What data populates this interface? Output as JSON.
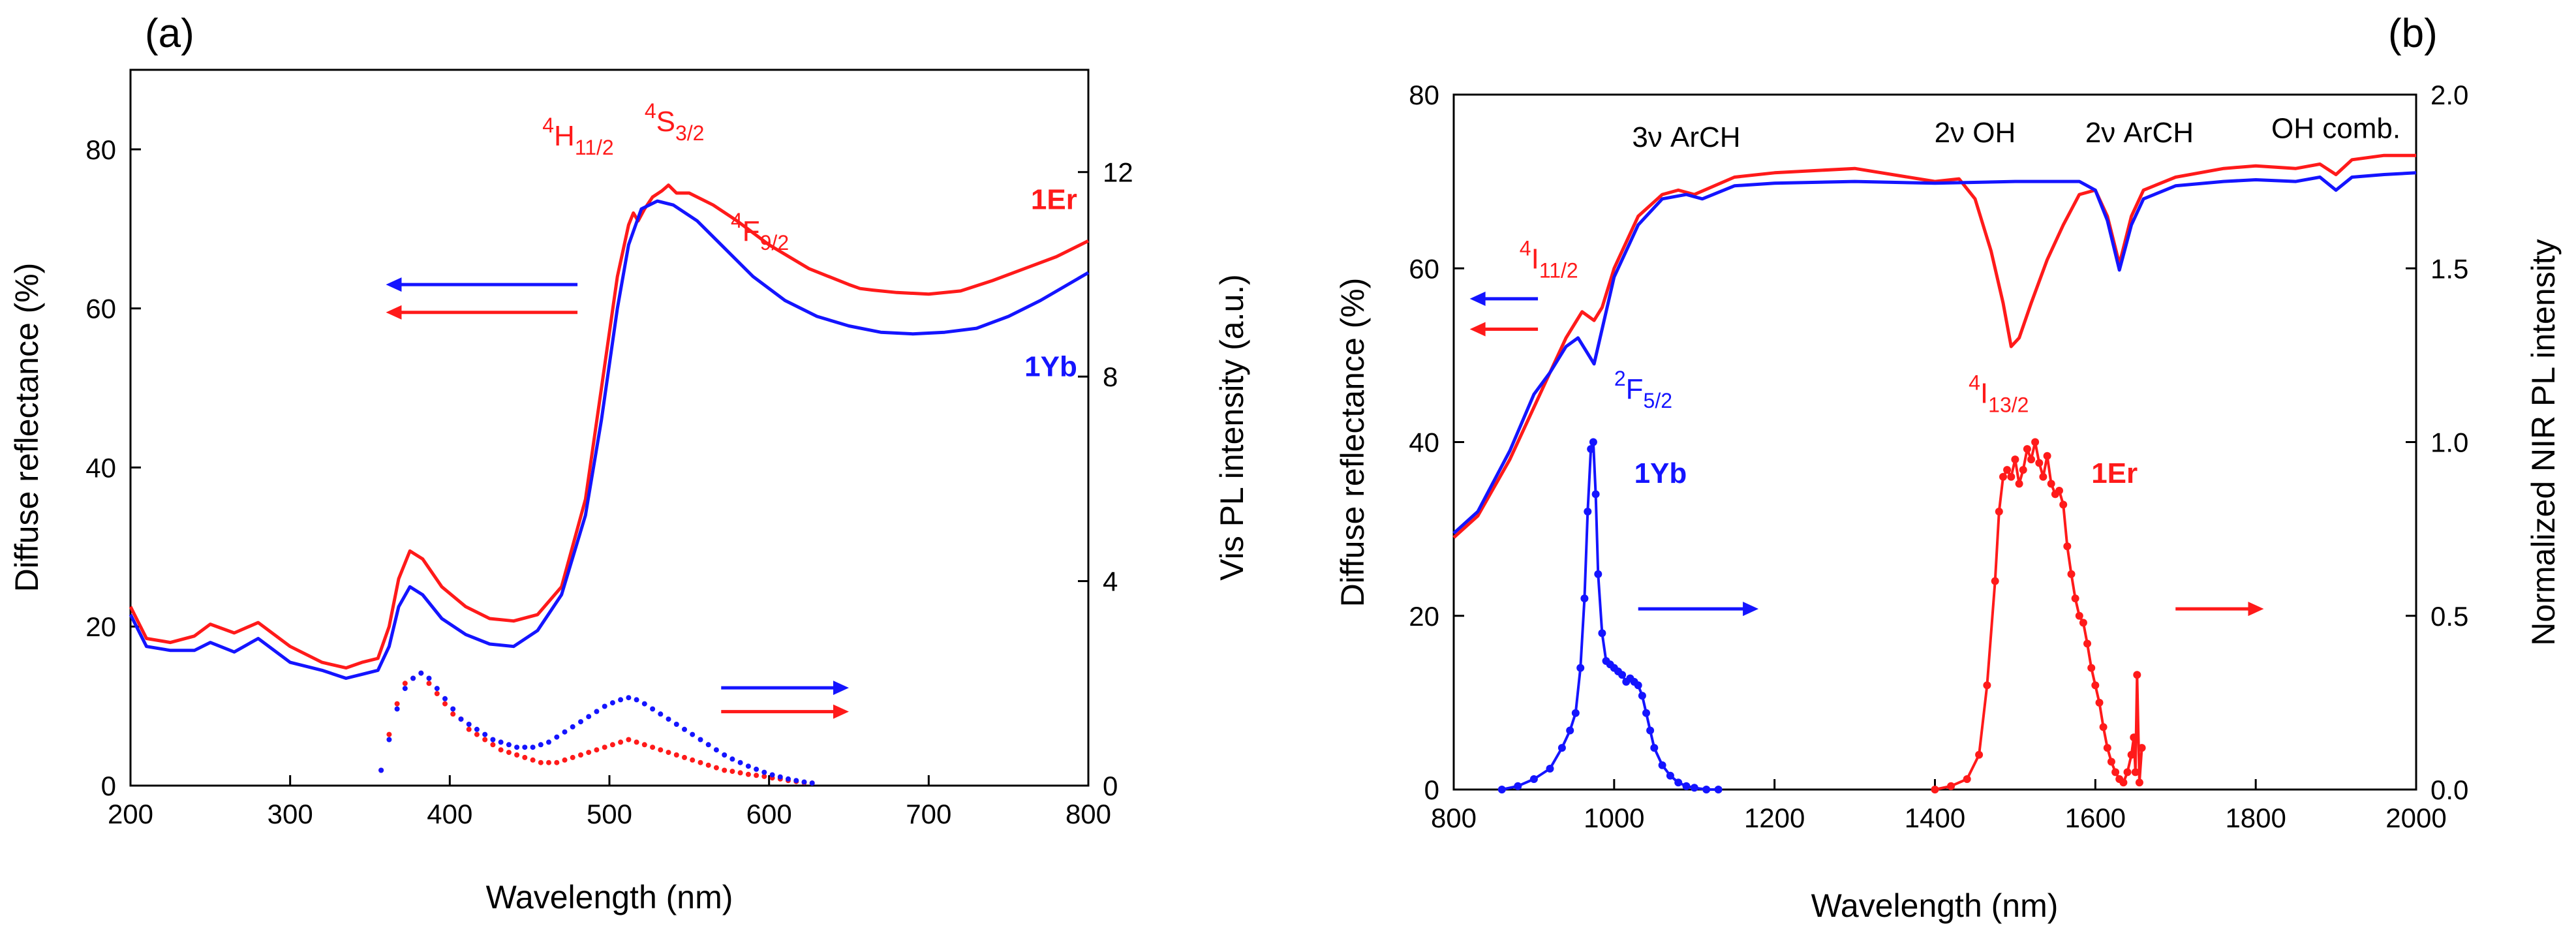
{
  "colors": {
    "red": "#ff1a1a",
    "blue": "#1414ff",
    "black": "#000000"
  },
  "chart_data": [
    {
      "type": "line",
      "panel_label": "(a)",
      "xlabel": "Wavelength (nm)",
      "ylabel": "Diffuse reflectance (%)",
      "y2label": "Vis PL intensity (a.u.)",
      "xlim": [
        200,
        800
      ],
      "ylim": [
        0,
        90
      ],
      "y2lim": [
        0,
        14
      ],
      "xticks": [
        200,
        300,
        400,
        500,
        600,
        700,
        800
      ],
      "yticks": [
        0,
        20,
        40,
        60,
        80
      ],
      "y2ticks": [
        0,
        4,
        8,
        12
      ],
      "series": [
        {
          "name": "1Er",
          "axis": "left",
          "color": "red",
          "style": "line",
          "x": [
            200,
            210,
            225,
            240,
            250,
            265,
            280,
            300,
            320,
            335,
            345,
            355,
            362,
            368,
            375,
            383,
            395,
            410,
            425,
            440,
            455,
            470,
            485,
            495,
            505,
            512,
            515,
            518,
            522,
            527,
            533,
            537,
            542,
            550,
            565,
            580,
            600,
            625,
            650,
            657,
            665,
            680,
            700,
            720,
            740,
            760,
            780,
            800
          ],
          "y": [
            22.5,
            18.5,
            18.0,
            18.8,
            20.3,
            19.2,
            20.5,
            17.5,
            15.5,
            14.8,
            15.5,
            16.0,
            20.0,
            26.0,
            29.5,
            28.5,
            25.0,
            22.5,
            21.0,
            20.7,
            21.5,
            25.0,
            36.0,
            50.0,
            64.0,
            70.5,
            72.0,
            71.0,
            72.5,
            74.0,
            74.8,
            75.5,
            74.5,
            74.5,
            73.0,
            71.0,
            68.0,
            65.0,
            63.0,
            62.5,
            62.3,
            62.0,
            61.8,
            62.2,
            63.5,
            65.0,
            66.5,
            68.5
          ]
        },
        {
          "name": "1Yb",
          "axis": "left",
          "color": "blue",
          "style": "line",
          "x": [
            200,
            210,
            225,
            240,
            250,
            265,
            280,
            300,
            320,
            335,
            345,
            355,
            362,
            368,
            375,
            383,
            395,
            410,
            425,
            440,
            455,
            470,
            485,
            495,
            505,
            512,
            520,
            530,
            540,
            555,
            570,
            590,
            610,
            630,
            650,
            670,
            690,
            710,
            730,
            750,
            770,
            800
          ],
          "y": [
            21.5,
            17.5,
            17.0,
            17.0,
            18.0,
            16.8,
            18.5,
            15.5,
            14.5,
            13.5,
            14.0,
            14.5,
            17.5,
            22.5,
            25.0,
            24.0,
            21.0,
            19.0,
            17.8,
            17.5,
            19.5,
            24.0,
            34.0,
            46.0,
            60.0,
            68.0,
            72.5,
            73.5,
            73.0,
            71.0,
            68.0,
            64.0,
            61.0,
            59.0,
            57.8,
            57.0,
            56.8,
            57.0,
            57.5,
            59.0,
            61.0,
            64.5
          ]
        },
        {
          "name": "1Er Vis PL",
          "axis": "right",
          "color": "red",
          "style": "scatter",
          "x": [
            357,
            362,
            367,
            372,
            377,
            382,
            387,
            392,
            397,
            402,
            407,
            412,
            417,
            422,
            427,
            432,
            437,
            442,
            447,
            452,
            457,
            462,
            467,
            472,
            477,
            482,
            487,
            492,
            497,
            502,
            507,
            512,
            517,
            522,
            527,
            532,
            537,
            542,
            547,
            552,
            557,
            562,
            567,
            572,
            577,
            582,
            587,
            592,
            597,
            602,
            607,
            612,
            617,
            622,
            627
          ],
          "y": [
            0.3,
            1.0,
            1.6,
            2.0,
            2.1,
            2.2,
            2.0,
            1.8,
            1.6,
            1.4,
            1.3,
            1.1,
            1.0,
            0.9,
            0.8,
            0.7,
            0.65,
            0.6,
            0.55,
            0.5,
            0.45,
            0.45,
            0.45,
            0.5,
            0.55,
            0.6,
            0.65,
            0.7,
            0.75,
            0.8,
            0.85,
            0.9,
            0.85,
            0.8,
            0.75,
            0.7,
            0.65,
            0.6,
            0.55,
            0.5,
            0.45,
            0.4,
            0.35,
            0.3,
            0.28,
            0.25,
            0.22,
            0.2,
            0.18,
            0.15,
            0.13,
            0.1,
            0.08,
            0.06,
            0.05
          ]
        },
        {
          "name": "1Yb Vis PL",
          "axis": "right",
          "color": "blue",
          "style": "scatter",
          "x": [
            357,
            362,
            367,
            372,
            377,
            382,
            387,
            392,
            397,
            402,
            407,
            412,
            417,
            422,
            427,
            432,
            437,
            442,
            447,
            452,
            457,
            462,
            467,
            472,
            477,
            482,
            487,
            492,
            497,
            502,
            507,
            512,
            517,
            522,
            527,
            532,
            537,
            542,
            547,
            552,
            557,
            562,
            567,
            572,
            577,
            582,
            587,
            592,
            597,
            602,
            607,
            612,
            617,
            622,
            627
          ],
          "y": [
            0.3,
            0.9,
            1.5,
            1.9,
            2.1,
            2.2,
            2.1,
            1.9,
            1.7,
            1.5,
            1.3,
            1.2,
            1.1,
            1.0,
            0.9,
            0.85,
            0.8,
            0.75,
            0.75,
            0.75,
            0.8,
            0.85,
            0.95,
            1.05,
            1.15,
            1.25,
            1.35,
            1.45,
            1.55,
            1.62,
            1.68,
            1.72,
            1.68,
            1.6,
            1.5,
            1.4,
            1.3,
            1.2,
            1.1,
            1.0,
            0.9,
            0.8,
            0.7,
            0.6,
            0.52,
            0.45,
            0.38,
            0.32,
            0.26,
            0.21,
            0.17,
            0.13,
            0.1,
            0.07,
            0.05
          ]
        }
      ],
      "labels": [
        {
          "text": "1Er",
          "color": "red",
          "x": 793,
          "y": 72.5,
          "anchor": "end",
          "bold": true
        },
        {
          "text": "1Yb",
          "color": "blue",
          "x": 793,
          "y": 51.5,
          "anchor": "end",
          "bold": true
        }
      ],
      "annotations": [
        {
          "base": "4",
          "main": "H",
          "sub": "11/2",
          "x": 458,
          "y": 80.5,
          "color": "red"
        },
        {
          "base": "4",
          "main": "S",
          "sub": "3/2",
          "x": 522,
          "y": 82.3,
          "color": "red"
        },
        {
          "base": "4",
          "main": "F",
          "sub": "9/2",
          "x": 576,
          "y": 68.5,
          "color": "red"
        }
      ],
      "arrows": [
        {
          "dir": "left",
          "color": "blue",
          "x_from": 480,
          "x_to": 360,
          "y": 63.0
        },
        {
          "dir": "left",
          "color": "red",
          "x_from": 480,
          "x_to": 360,
          "y": 59.5
        },
        {
          "dir": "right",
          "color": "blue",
          "x_from": 570,
          "x_to": 650,
          "y": 12.3
        },
        {
          "dir": "right",
          "color": "red",
          "x_from": 570,
          "x_to": 650,
          "y": 9.3
        }
      ]
    },
    {
      "type": "line",
      "panel_label": "(b)",
      "xlabel": "Wavelength (nm)",
      "ylabel": "Diffuse reflectance (%)",
      "y2label": "Normalized NIR PL intensity",
      "xlim": [
        800,
        2000
      ],
      "ylim": [
        0,
        80
      ],
      "y2lim": [
        0,
        2
      ],
      "xticks": [
        800,
        1000,
        1200,
        1400,
        1600,
        1800,
        2000
      ],
      "xtick_labels": [
        "800",
        "1000",
        "1200",
        "1400",
        "1600",
        "1800",
        "2000"
      ],
      "yticks": [
        0,
        20,
        40,
        60,
        80
      ],
      "y2ticks": [
        0,
        0.5,
        1.0,
        1.5,
        2.0
      ],
      "y2tick_labels": [
        "0.0",
        "0.5",
        "1.0",
        "1.5",
        "2.0"
      ],
      "series": [
        {
          "name": "1Er",
          "axis": "left",
          "color": "red",
          "style": "line",
          "x": [
            800,
            830,
            870,
            910,
            940,
            960,
            975,
            985,
            1000,
            1030,
            1060,
            1080,
            1100,
            1150,
            1200,
            1300,
            1400,
            1430,
            1450,
            1470,
            1485,
            1495,
            1505,
            1520,
            1540,
            1560,
            1580,
            1600,
            1615,
            1630,
            1645,
            1660,
            1700,
            1760,
            1800,
            1850,
            1880,
            1900,
            1920,
            1960,
            2000
          ],
          "y": [
            29.0,
            31.5,
            38.0,
            46.0,
            52.0,
            55.0,
            54.0,
            55.5,
            60.0,
            66.0,
            68.5,
            69.0,
            68.5,
            70.5,
            71.0,
            71.5,
            70.0,
            70.3,
            68.0,
            62.0,
            56.0,
            51.0,
            52.0,
            56.0,
            61.0,
            65.0,
            68.5,
            69.0,
            66.0,
            60.5,
            66.0,
            69.0,
            70.5,
            71.5,
            71.8,
            71.5,
            72.0,
            70.8,
            72.5,
            73.0,
            73.0
          ]
        },
        {
          "name": "1Yb",
          "axis": "left",
          "color": "blue",
          "style": "line",
          "x": [
            800,
            830,
            870,
            900,
            920,
            940,
            955,
            965,
            975,
            985,
            1000,
            1030,
            1060,
            1090,
            1110,
            1150,
            1200,
            1300,
            1400,
            1500,
            1580,
            1600,
            1615,
            1630,
            1645,
            1660,
            1700,
            1760,
            1800,
            1850,
            1880,
            1900,
            1920,
            1960,
            2000
          ],
          "y": [
            29.5,
            32.0,
            39.0,
            45.5,
            48.0,
            51.0,
            52.0,
            50.5,
            49.0,
            53.0,
            59.0,
            65.0,
            68.0,
            68.5,
            68.0,
            69.5,
            69.8,
            70.0,
            69.8,
            70.0,
            70.0,
            69.0,
            65.5,
            59.8,
            65.0,
            68.0,
            69.5,
            70.0,
            70.2,
            70.0,
            70.5,
            69.0,
            70.5,
            70.8,
            71.0
          ]
        },
        {
          "name": "1Yb NIR PL",
          "axis": "right",
          "color": "blue",
          "style": "scatter-line",
          "x": [
            860,
            880,
            900,
            920,
            935,
            945,
            952,
            958,
            963,
            967,
            971,
            974,
            977,
            980,
            985,
            990,
            995,
            1000,
            1005,
            1010,
            1015,
            1020,
            1025,
            1030,
            1035,
            1040,
            1045,
            1050,
            1060,
            1070,
            1080,
            1090,
            1100,
            1115,
            1130
          ],
          "y": [
            0.0,
            0.01,
            0.03,
            0.06,
            0.12,
            0.17,
            0.22,
            0.35,
            0.55,
            0.8,
            0.98,
            1.0,
            0.85,
            0.62,
            0.45,
            0.37,
            0.36,
            0.35,
            0.34,
            0.33,
            0.31,
            0.32,
            0.31,
            0.3,
            0.27,
            0.22,
            0.17,
            0.12,
            0.07,
            0.04,
            0.02,
            0.01,
            0.005,
            0.0,
            0.0
          ]
        },
        {
          "name": "1Er NIR PL",
          "axis": "right",
          "color": "red",
          "style": "scatter-line",
          "x": [
            1400,
            1420,
            1440,
            1455,
            1465,
            1475,
            1480,
            1485,
            1490,
            1495,
            1500,
            1505,
            1510,
            1515,
            1520,
            1525,
            1530,
            1535,
            1540,
            1545,
            1550,
            1555,
            1560,
            1565,
            1570,
            1575,
            1580,
            1585,
            1590,
            1595,
            1600,
            1605,
            1610,
            1615,
            1620,
            1625,
            1630,
            1635,
            1640,
            1645,
            1648,
            1650,
            1652,
            1655,
            1658
          ],
          "y": [
            0.0,
            0.01,
            0.03,
            0.1,
            0.3,
            0.6,
            0.8,
            0.9,
            0.92,
            0.9,
            0.95,
            0.88,
            0.92,
            0.98,
            0.95,
            1.0,
            0.94,
            0.9,
            0.96,
            0.88,
            0.85,
            0.86,
            0.82,
            0.7,
            0.62,
            0.55,
            0.5,
            0.48,
            0.42,
            0.35,
            0.3,
            0.25,
            0.18,
            0.12,
            0.08,
            0.05,
            0.03,
            0.02,
            0.05,
            0.1,
            0.15,
            0.05,
            0.33,
            0.02,
            0.12
          ]
        }
      ],
      "labels": [
        {
          "text": "1Yb",
          "color": "blue",
          "x": 1025,
          "y": 35.3,
          "anchor": "start",
          "bold": true
        },
        {
          "text": "1Er",
          "color": "red",
          "x": 1595,
          "y": 35.3,
          "anchor": "start",
          "bold": true
        },
        {
          "text": "3ν ArCH",
          "color": "black",
          "x": 1090,
          "y": 74.0,
          "anchor": "middle",
          "bold": false
        },
        {
          "text": "2ν OH",
          "color": "black",
          "x": 1450,
          "y": 74.5,
          "anchor": "middle",
          "bold": false
        },
        {
          "text": "2ν ArCH",
          "color": "black",
          "x": 1655,
          "y": 74.5,
          "anchor": "middle",
          "bold": false
        },
        {
          "text": "OH comb.",
          "color": "black",
          "x": 1900,
          "y": 75.0,
          "anchor": "middle",
          "bold": false
        }
      ],
      "annotations": [
        {
          "base": "4",
          "main": "I",
          "sub": "11/2",
          "x": 882,
          "y": 60.0,
          "color": "red"
        },
        {
          "base": "2",
          "main": "F",
          "sub": "5/2",
          "x": 1000,
          "y": 45.0,
          "color": "blue"
        },
        {
          "base": "4",
          "main": "I",
          "sub": "13/2",
          "x": 1442,
          "y": 44.5,
          "color": "red"
        }
      ],
      "arrows": [
        {
          "dir": "left",
          "color": "blue",
          "x_from": 905,
          "x_to": 820,
          "y": 56.5
        },
        {
          "dir": "left",
          "color": "red",
          "x_from": 905,
          "x_to": 820,
          "y": 53.0
        },
        {
          "dir": "right",
          "color": "blue",
          "x_from": 1030,
          "x_to": 1180,
          "y": 20.8
        },
        {
          "dir": "right",
          "color": "red",
          "x_from": 1700,
          "x_to": 1810,
          "y": 20.8
        }
      ]
    }
  ]
}
